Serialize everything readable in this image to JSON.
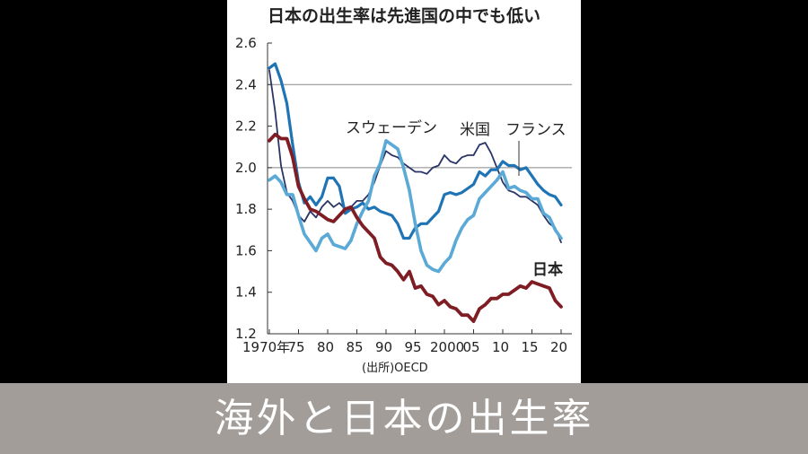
{
  "chart_data": {
    "type": "line",
    "title": "日本の出生率は先進国の中でも低い",
    "source": "(出所)OECD",
    "xlim": [
      1970,
      2020
    ],
    "ylim": [
      1.2,
      2.6
    ],
    "yticks": [
      "2.6",
      "2.4",
      "2.2",
      "2.0",
      "1.8",
      "1.6",
      "1.4",
      "1.2"
    ],
    "ytick_values": [
      2.6,
      2.4,
      2.2,
      2.0,
      1.8,
      1.6,
      1.4,
      1.2
    ],
    "xticks": [
      "1970年",
      "75",
      "80",
      "85",
      "90",
      "95",
      "2000",
      "05",
      "10",
      "15",
      "20"
    ],
    "xtick_values": [
      1970,
      1975,
      1980,
      1985,
      1990,
      1995,
      2000,
      2005,
      2010,
      2015,
      2020
    ],
    "gridlines": [
      2.0,
      2.4
    ],
    "series": [
      {
        "name": "米国",
        "color": "#2a3566",
        "x": [
          1970,
          1971,
          1972,
          1973,
          1974,
          1975,
          1976,
          1977,
          1978,
          1979,
          1980,
          1981,
          1982,
          1983,
          1984,
          1985,
          1986,
          1987,
          1988,
          1989,
          1990,
          1991,
          1992,
          1993,
          1994,
          1995,
          1996,
          1997,
          1998,
          1999,
          2000,
          2001,
          2002,
          2003,
          2004,
          2005,
          2006,
          2007,
          2008,
          2009,
          2010,
          2011,
          2012,
          2013,
          2014,
          2015,
          2016,
          2017,
          2018,
          2019,
          2020
        ],
        "y": [
          2.47,
          2.27,
          2.01,
          1.88,
          1.84,
          1.77,
          1.74,
          1.79,
          1.76,
          1.81,
          1.84,
          1.81,
          1.83,
          1.8,
          1.81,
          1.84,
          1.84,
          1.87,
          1.93,
          2.01,
          2.08,
          2.06,
          2.05,
          2.02,
          2.0,
          1.98,
          1.98,
          1.97,
          2.0,
          2.01,
          2.06,
          2.03,
          2.02,
          2.05,
          2.06,
          2.06,
          2.11,
          2.12,
          2.07,
          2.0,
          1.93,
          1.89,
          1.88,
          1.86,
          1.86,
          1.84,
          1.82,
          1.77,
          1.73,
          1.71,
          1.64
        ]
      },
      {
        "name": "フランス",
        "color": "#1e74b4",
        "x": [
          1970,
          1971,
          1972,
          1973,
          1974,
          1975,
          1976,
          1977,
          1978,
          1979,
          1980,
          1981,
          1982,
          1983,
          1984,
          1985,
          1986,
          1987,
          1988,
          1989,
          1990,
          1991,
          1992,
          1993,
          1994,
          1995,
          1996,
          1997,
          1998,
          1999,
          2000,
          2001,
          2002,
          2003,
          2004,
          2005,
          2006,
          2007,
          2008,
          2009,
          2010,
          2011,
          2012,
          2013,
          2014,
          2015,
          2016,
          2017,
          2018,
          2019,
          2020
        ],
        "y": [
          2.48,
          2.5,
          2.42,
          2.31,
          2.11,
          1.93,
          1.83,
          1.86,
          1.82,
          1.86,
          1.95,
          1.95,
          1.91,
          1.78,
          1.8,
          1.81,
          1.83,
          1.8,
          1.81,
          1.79,
          1.78,
          1.77,
          1.73,
          1.66,
          1.66,
          1.71,
          1.73,
          1.73,
          1.76,
          1.79,
          1.87,
          1.88,
          1.87,
          1.88,
          1.9,
          1.92,
          1.98,
          1.96,
          1.99,
          1.99,
          2.03,
          2.01,
          2.01,
          1.99,
          2.0,
          1.96,
          1.92,
          1.89,
          1.87,
          1.86,
          1.82
        ]
      },
      {
        "name": "スウェーデン",
        "color": "#5aa9d6",
        "x": [
          1970,
          1971,
          1972,
          1973,
          1974,
          1975,
          1976,
          1977,
          1978,
          1979,
          1980,
          1981,
          1982,
          1983,
          1984,
          1985,
          1986,
          1987,
          1988,
          1989,
          1990,
          1991,
          1992,
          1993,
          1994,
          1995,
          1996,
          1997,
          1998,
          1999,
          2000,
          2001,
          2002,
          2003,
          2004,
          2005,
          2006,
          2007,
          2008,
          2009,
          2010,
          2011,
          2012,
          2013,
          2014,
          2015,
          2016,
          2017,
          2018,
          2019,
          2020
        ],
        "y": [
          1.94,
          1.96,
          1.93,
          1.87,
          1.87,
          1.77,
          1.68,
          1.64,
          1.6,
          1.66,
          1.68,
          1.63,
          1.62,
          1.61,
          1.65,
          1.73,
          1.79,
          1.84,
          1.96,
          2.02,
          2.13,
          2.11,
          2.09,
          2.0,
          1.89,
          1.73,
          1.6,
          1.53,
          1.51,
          1.5,
          1.54,
          1.57,
          1.65,
          1.71,
          1.75,
          1.77,
          1.85,
          1.88,
          1.91,
          1.94,
          1.98,
          1.9,
          1.91,
          1.89,
          1.88,
          1.85,
          1.85,
          1.78,
          1.76,
          1.7,
          1.66
        ]
      },
      {
        "name": "日本",
        "color": "#7e1d24",
        "x": [
          1970,
          1971,
          1972,
          1973,
          1974,
          1975,
          1976,
          1977,
          1978,
          1979,
          1980,
          1981,
          1982,
          1983,
          1984,
          1985,
          1986,
          1987,
          1988,
          1989,
          1990,
          1991,
          1992,
          1993,
          1994,
          1995,
          1996,
          1997,
          1998,
          1999,
          2000,
          2001,
          2002,
          2003,
          2004,
          2005,
          2006,
          2007,
          2008,
          2009,
          2010,
          2011,
          2012,
          2013,
          2014,
          2015,
          2016,
          2017,
          2018,
          2019,
          2020
        ],
        "y": [
          2.13,
          2.16,
          2.14,
          2.14,
          2.05,
          1.91,
          1.85,
          1.8,
          1.79,
          1.77,
          1.75,
          1.74,
          1.77,
          1.8,
          1.81,
          1.76,
          1.72,
          1.69,
          1.66,
          1.57,
          1.54,
          1.53,
          1.5,
          1.46,
          1.5,
          1.42,
          1.43,
          1.39,
          1.38,
          1.34,
          1.36,
          1.33,
          1.32,
          1.29,
          1.29,
          1.26,
          1.32,
          1.34,
          1.37,
          1.37,
          1.39,
          1.39,
          1.41,
          1.43,
          1.42,
          1.45,
          1.44,
          1.43,
          1.42,
          1.36,
          1.33
        ]
      }
    ],
    "annotations": [
      {
        "text": "スウェーデン",
        "series": "スウェーデン"
      },
      {
        "text": "米国",
        "series": "米国"
      },
      {
        "text": "フランス",
        "series": "フランス"
      },
      {
        "text": "日本",
        "series": "日本",
        "bold": true
      }
    ]
  },
  "caption": {
    "text": "海外と日本の出生率",
    "bar_color": "#a29d99",
    "text_color": "#ffffff"
  }
}
